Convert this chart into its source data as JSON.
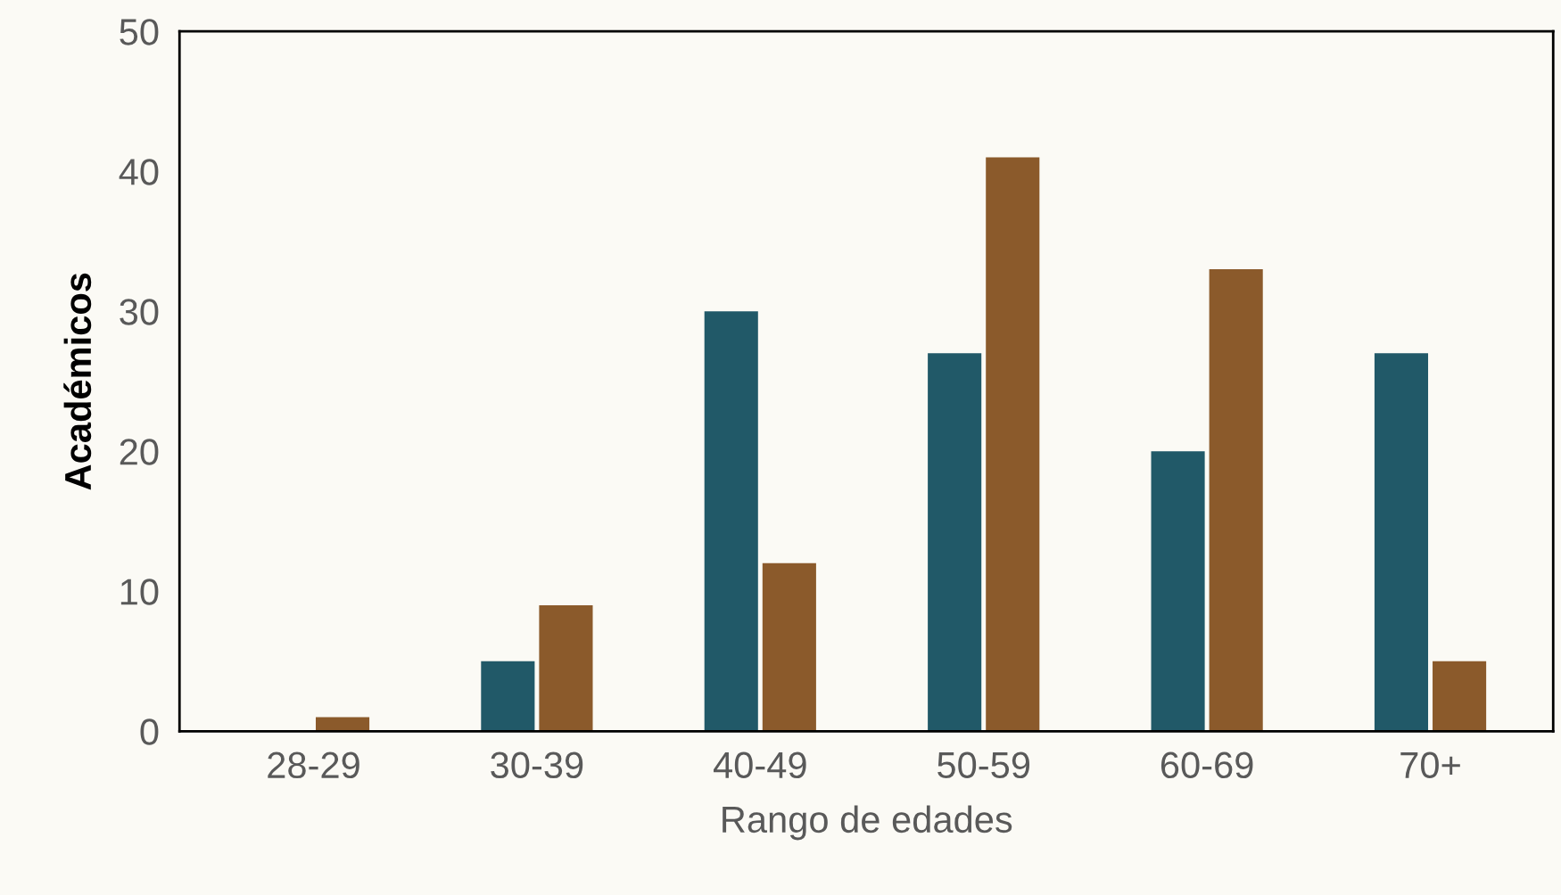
{
  "chart_data": {
    "type": "bar",
    "xlabel": "Rango de edades",
    "ylabel": "Académicos",
    "categories": [
      "28-29",
      "30-39",
      "40-49",
      "50-59",
      "60-69",
      "70+"
    ],
    "series": [
      {
        "color": "#215968",
        "values": [
          0,
          5,
          30,
          27,
          20,
          27
        ]
      },
      {
        "color": "#8b5a2b",
        "values": [
          1,
          9,
          12,
          41,
          33,
          5
        ]
      }
    ],
    "ylim": [
      0,
      50
    ],
    "yticks": [
      0,
      10,
      20,
      30,
      40,
      50
    ],
    "grid": false,
    "legend": false
  }
}
